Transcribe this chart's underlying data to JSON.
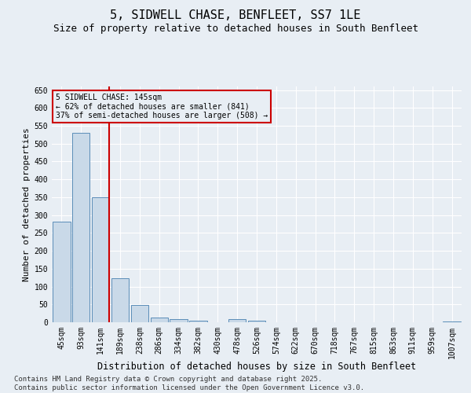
{
  "title": "5, SIDWELL CHASE, BENFLEET, SS7 1LE",
  "subtitle": "Size of property relative to detached houses in South Benfleet",
  "xlabel": "Distribution of detached houses by size in South Benfleet",
  "ylabel": "Number of detached properties",
  "categories": [
    "45sqm",
    "93sqm",
    "141sqm",
    "189sqm",
    "238sqm",
    "286sqm",
    "334sqm",
    "382sqm",
    "430sqm",
    "478sqm",
    "526sqm",
    "574sqm",
    "622sqm",
    "670sqm",
    "718sqm",
    "767sqm",
    "815sqm",
    "863sqm",
    "911sqm",
    "959sqm",
    "1007sqm"
  ],
  "values": [
    282,
    530,
    350,
    123,
    48,
    14,
    9,
    4,
    0,
    8,
    5,
    0,
    0,
    0,
    0,
    0,
    0,
    0,
    0,
    0,
    3
  ],
  "bar_color": "#c9d9e8",
  "bar_edge_color": "#5b8db8",
  "vline_index": 2,
  "vline_color": "#cc0000",
  "annotation_text": "5 SIDWELL CHASE: 145sqm\n← 62% of detached houses are smaller (841)\n37% of semi-detached houses are larger (508) →",
  "annotation_box_color": "#cc0000",
  "annotation_text_color": "#000000",
  "ylim": [
    0,
    660
  ],
  "yticks": [
    0,
    50,
    100,
    150,
    200,
    250,
    300,
    350,
    400,
    450,
    500,
    550,
    600,
    650
  ],
  "background_color": "#e8eef4",
  "footer": "Contains HM Land Registry data © Crown copyright and database right 2025.\nContains public sector information licensed under the Open Government Licence v3.0.",
  "title_fontsize": 11,
  "subtitle_fontsize": 9,
  "xlabel_fontsize": 8.5,
  "ylabel_fontsize": 8,
  "tick_fontsize": 7,
  "footer_fontsize": 6.5
}
